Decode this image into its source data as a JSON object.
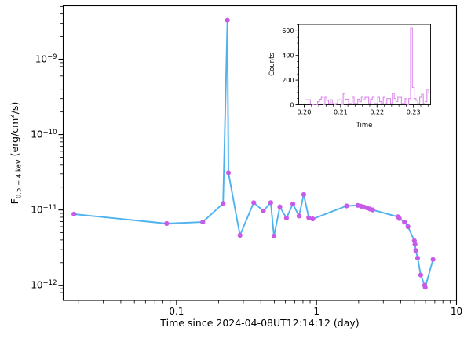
{
  "labels": {
    "xlabel": "Time since 2024-04-08UT12:14:12 (day)",
    "ylabel_prefix": "F",
    "ylabel_sub": "0.5 − 4 keV",
    "ylabel_mid": " (erg/cm",
    "ylabel_sup": "2",
    "ylabel_suffix": "/s)",
    "inset_xlabel": "Time",
    "inset_ylabel": "Counts"
  },
  "chart_data": [
    {
      "name": "flux-light-curve",
      "type": "line",
      "title": "",
      "xlabel": "Time since 2024-04-08UT12:14:12 (day)",
      "ylabel": "F_0.5-4 keV (erg/cm^2/s)",
      "x_scale": "log",
      "y_scale": "log",
      "xlim": [
        0.0155,
        10
      ],
      "ylim": [
        6.3e-13,
        5.1e-09
      ],
      "x_major_ticks": [
        0.1,
        1,
        10
      ],
      "x_major_labels": [
        "0.1",
        "1",
        "10"
      ],
      "y_major_exponents": [
        -9,
        -10,
        -11,
        -12
      ],
      "grid": false,
      "legend": "none",
      "line_color": "#4db2ef",
      "marker_color": "#c75be8",
      "series": [
        {
          "name": "flux",
          "x": [
            0.0185,
            0.085,
            0.154,
            0.215,
            0.231,
            0.2348,
            0.284,
            0.356,
            0.417,
            0.471,
            0.497,
            0.547,
            0.61,
            0.678,
            0.75,
            0.81,
            0.88,
            0.94,
            1.64,
            1.97,
            2.08,
            2.19,
            2.3,
            2.41,
            2.52,
            3.82,
            3.9,
            4.25,
            4.5,
            5.0,
            5.05,
            5.12,
            5.28,
            5.55,
            5.92,
            5.98,
            6.8
          ],
          "y": [
            8.8e-12,
            6.6e-12,
            6.9e-12,
            1.22e-11,
            3.3e-09,
            3.1e-11,
            4.6e-12,
            1.25e-11,
            9.7e-12,
            1.25e-11,
            4.5e-12,
            1.1e-11,
            7.8e-12,
            1.2e-11,
            8.3e-12,
            1.6e-11,
            7.9e-12,
            7.6e-12,
            1.13e-11,
            1.15e-11,
            1.12e-11,
            1.09e-11,
            1.06e-11,
            1.03e-11,
            1e-11,
            8.1e-12,
            7.7e-12,
            6.9e-12,
            6e-12,
            3.9e-12,
            3.5e-12,
            2.9e-12,
            2.3e-12,
            1.37e-12,
            1e-12,
            9.4e-13,
            2.2e-12
          ]
        }
      ]
    },
    {
      "name": "counts-inset",
      "type": "step",
      "title": "",
      "xlabel": "Time",
      "ylabel": "Counts",
      "x_scale": "linear",
      "y_scale": "linear",
      "xlim": [
        0.1985,
        0.2347
      ],
      "ylim": [
        0,
        653
      ],
      "x_ticks": [
        0.2,
        0.21,
        0.22,
        0.23
      ],
      "x_tick_labels": [
        "0.20",
        "0.21",
        "0.22",
        "0.23"
      ],
      "y_ticks": [
        0,
        200,
        400,
        600
      ],
      "y_tick_labels": [
        "0",
        "200",
        "400",
        "600"
      ],
      "grid": false,
      "line_color": "#dd8aec",
      "bin_start": 0.2002,
      "bin_width": 0.0005,
      "counts": [
        40,
        40,
        40,
        5,
        0,
        5,
        0,
        25,
        45,
        60,
        0,
        60,
        35,
        10,
        40,
        10,
        0,
        10,
        40,
        40,
        0,
        90,
        45,
        45,
        10,
        10,
        60,
        10,
        10,
        45,
        25,
        60,
        40,
        60,
        60,
        10,
        45,
        60,
        10,
        10,
        60,
        25,
        10,
        60,
        10,
        50,
        50,
        10,
        90,
        50,
        25,
        60,
        60,
        10,
        10,
        50,
        0,
        50,
        620,
        140,
        50,
        35,
        10,
        60,
        85,
        10,
        25,
        125,
        95
      ]
    }
  ]
}
